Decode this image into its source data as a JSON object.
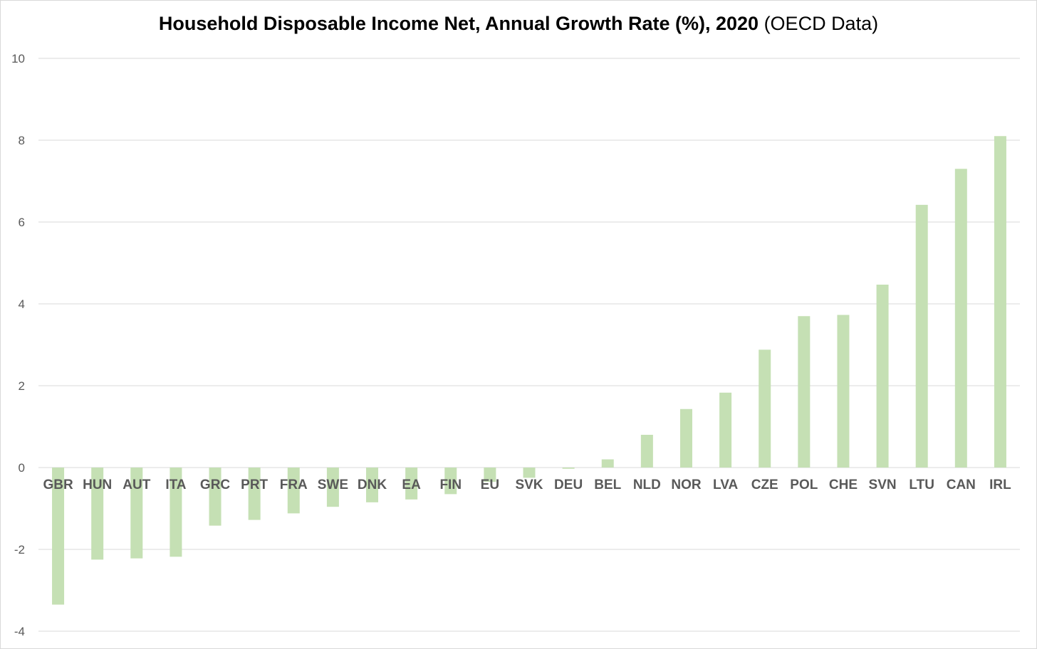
{
  "title": {
    "main": "Household Disposable Income Net, Annual Growth Rate (%), 2020",
    "suffix": "(OECD Data)"
  },
  "colors": {
    "bar": "#c5e0b4",
    "grid": "#d9d9d9",
    "tick_text": "#595959"
  },
  "chart_data": {
    "type": "bar",
    "title": "Household Disposable Income Net, Annual Growth Rate (%), 2020 (OECD Data)",
    "xlabel": "",
    "ylabel": "",
    "ylim": [
      -4,
      10
    ],
    "yticks": [
      10,
      8,
      6,
      4,
      2,
      0,
      -2,
      -4
    ],
    "grid": true,
    "legend": "none",
    "categories": [
      "GBR",
      "HUN",
      "AUT",
      "ITA",
      "GRC",
      "PRT",
      "FRA",
      "SWE",
      "DNK",
      "EA",
      "FIN",
      "EU",
      "SVK",
      "DEU",
      "BEL",
      "NLD",
      "NOR",
      "LVA",
      "CZE",
      "POL",
      "CHE",
      "SVN",
      "LTU",
      "CAN",
      "IRL"
    ],
    "values": [
      -3.35,
      -2.25,
      -2.22,
      -2.18,
      -1.42,
      -1.28,
      -1.12,
      -0.96,
      -0.85,
      -0.78,
      -0.65,
      -0.35,
      -0.25,
      -0.03,
      0.2,
      0.8,
      1.43,
      1.83,
      2.88,
      3.7,
      3.73,
      4.47,
      6.42,
      7.3,
      8.1
    ]
  }
}
